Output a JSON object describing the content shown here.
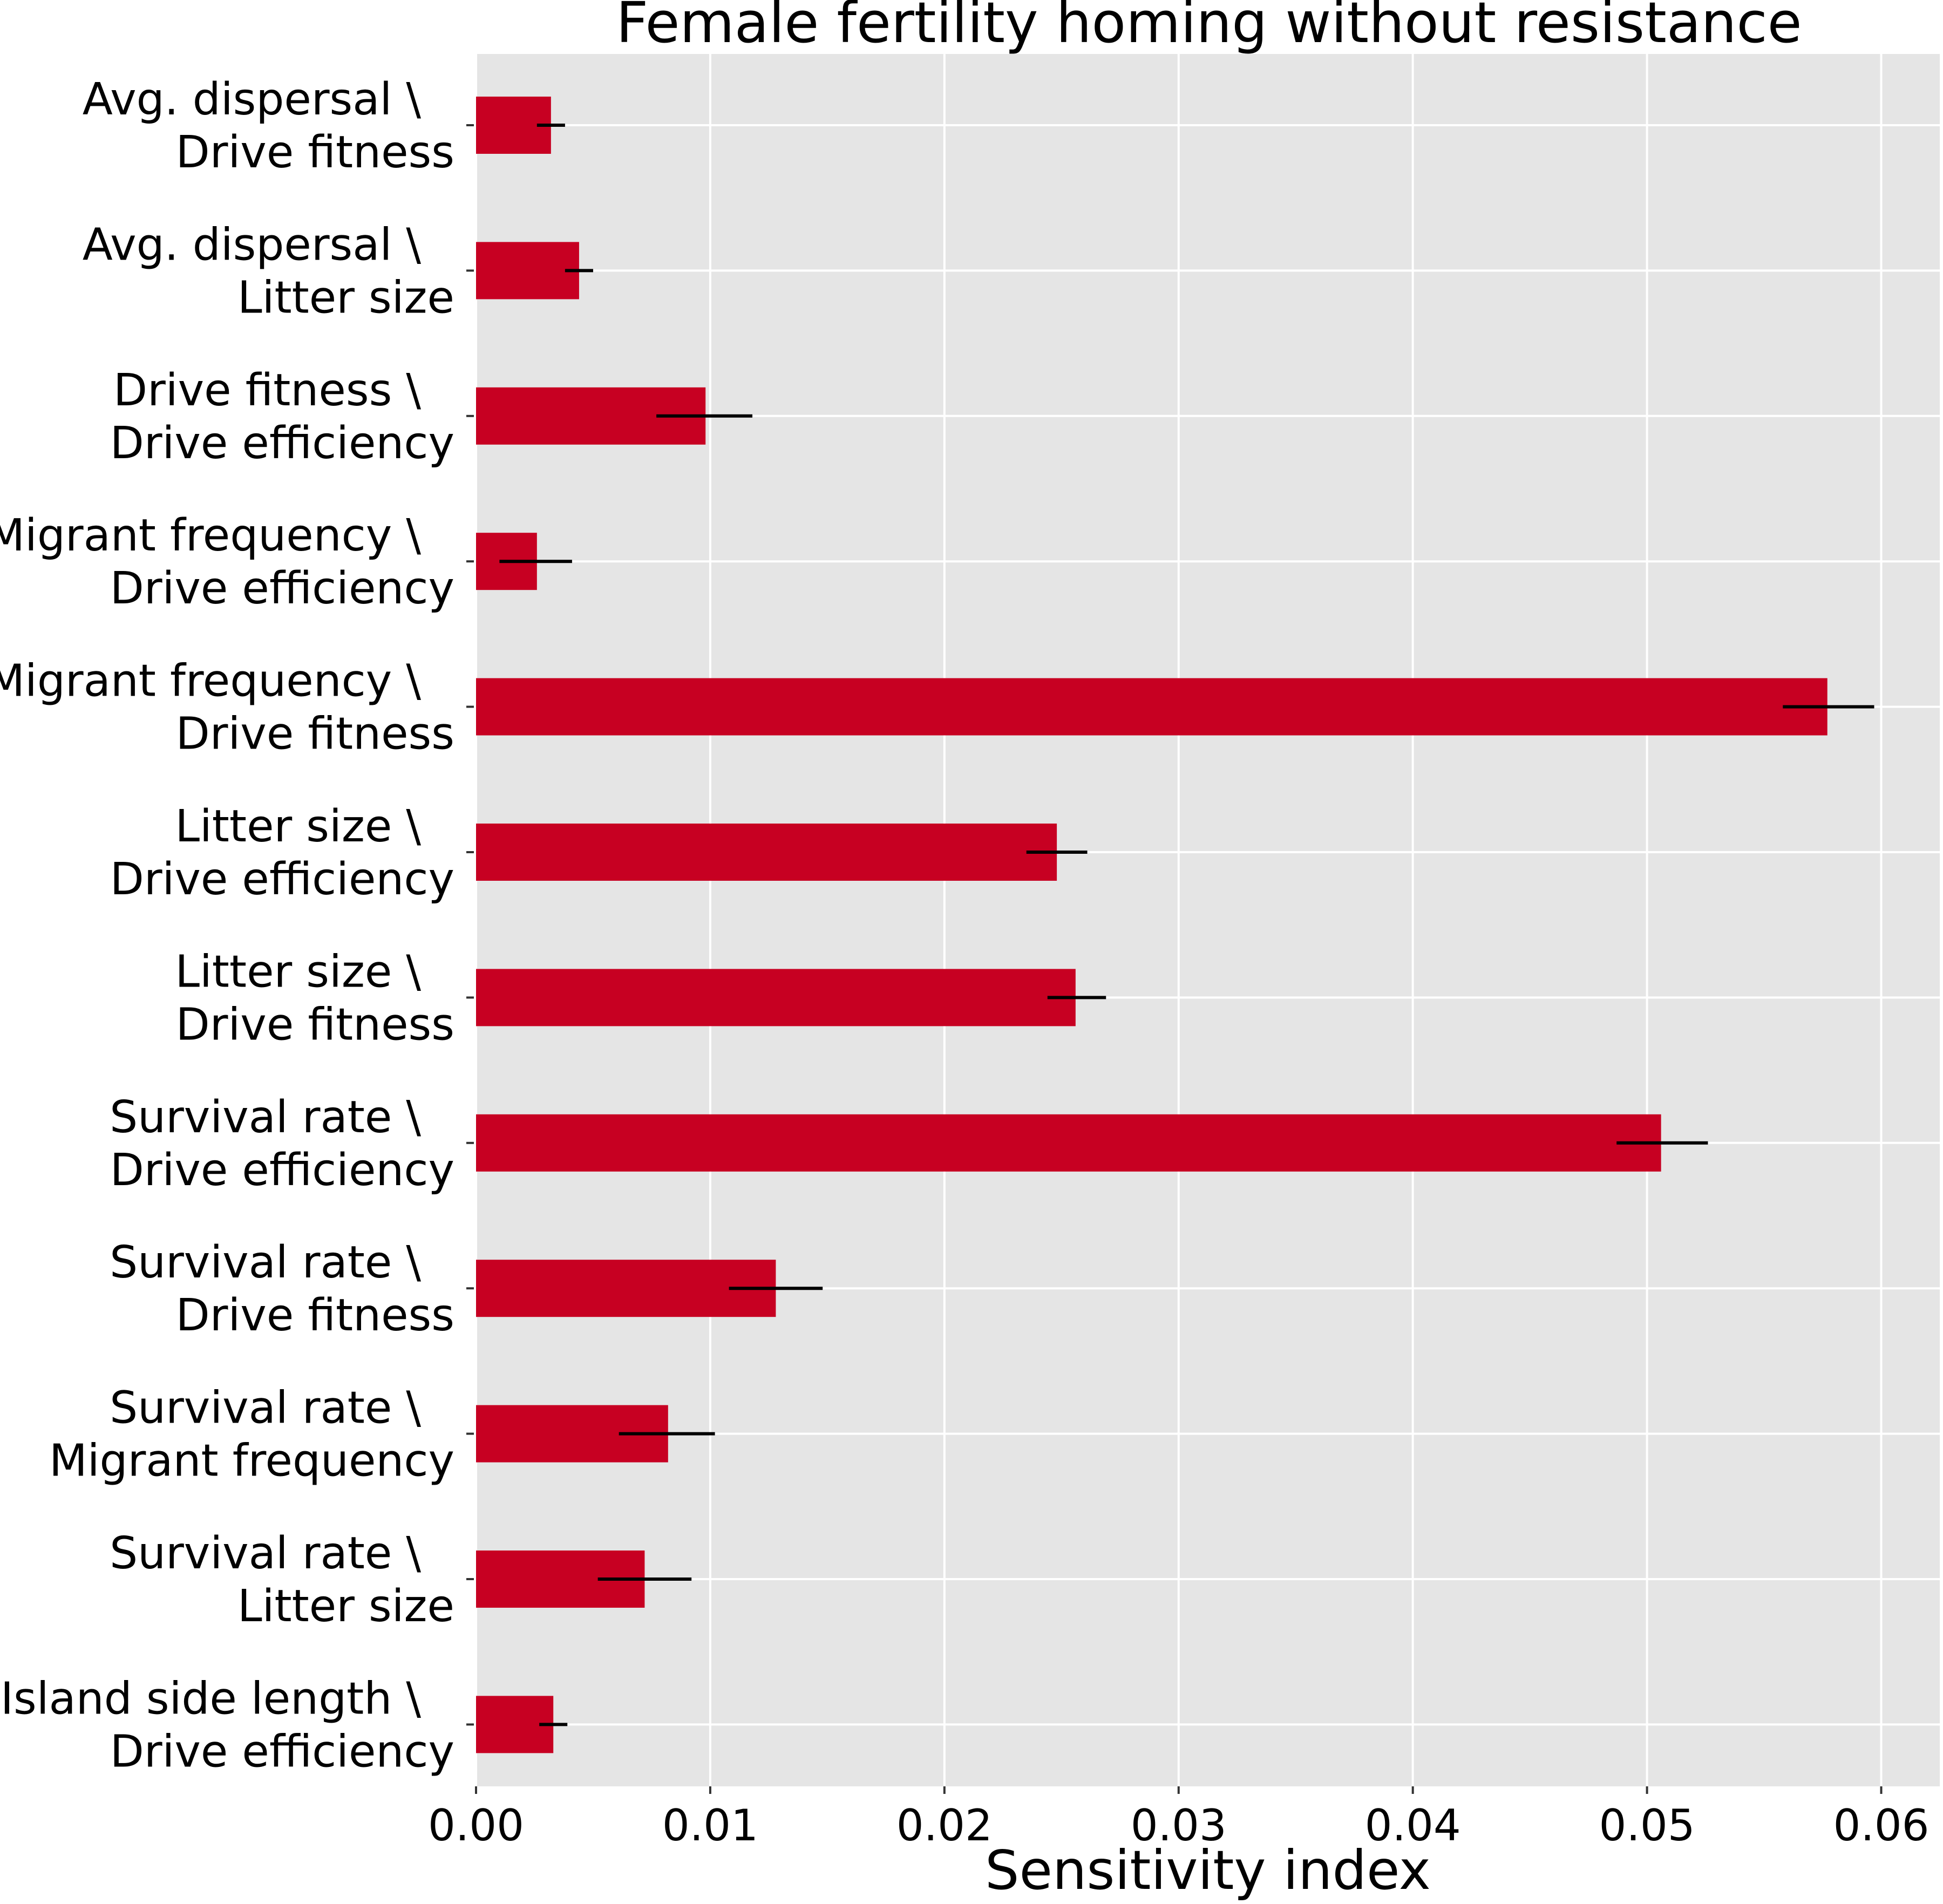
{
  "chart_data": {
    "type": "bar",
    "orientation": "horizontal",
    "title": "Female fertility homing without resistance",
    "xlabel": "Sensitivity index",
    "ylabel": "",
    "xlim": [
      0,
      0.0625
    ],
    "xticks": [
      0.0,
      0.01,
      0.02,
      0.03,
      0.04,
      0.05,
      0.06
    ],
    "xtick_labels": [
      "0.00",
      "0.01",
      "0.02",
      "0.03",
      "0.04",
      "0.05",
      "0.06"
    ],
    "grid": true,
    "bar_color": "#c70022",
    "error_bar_color": "#000000",
    "background_color": "#e5e5e5",
    "categories": [
      {
        "line1": "Avg. dispersal \\",
        "line2": "Drive fitness"
      },
      {
        "line1": "Avg. dispersal \\",
        "line2": "Litter size"
      },
      {
        "line1": "Drive fitness \\",
        "line2": "Drive efficiency"
      },
      {
        "line1": "Migrant frequency \\",
        "line2": "Drive efficiency"
      },
      {
        "line1": "Migrant frequency \\",
        "line2": "Drive fitness"
      },
      {
        "line1": "Litter size \\",
        "line2": "Drive efficiency"
      },
      {
        "line1": "Litter size \\",
        "line2": "Drive fitness"
      },
      {
        "line1": "Survival rate \\",
        "line2": "Drive efficiency"
      },
      {
        "line1": "Survival rate \\",
        "line2": "Drive fitness"
      },
      {
        "line1": "Survival rate \\",
        "line2": "Migrant frequency"
      },
      {
        "line1": "Survival rate \\",
        "line2": "Litter size"
      },
      {
        "line1": "Island side length \\",
        "line2": "Drive efficiency"
      }
    ],
    "values": [
      0.0032,
      0.0044,
      0.0098,
      0.0026,
      0.0577,
      0.0248,
      0.0256,
      0.0506,
      0.0128,
      0.0082,
      0.0072,
      0.0033
    ],
    "error_low": [
      0.0026,
      0.0038,
      0.0077,
      0.001,
      0.0558,
      0.0235,
      0.0244,
      0.0487,
      0.0108,
      0.0061,
      0.0052,
      0.0027
    ],
    "error_high": [
      0.0038,
      0.005,
      0.0118,
      0.0041,
      0.0597,
      0.0261,
      0.0269,
      0.0526,
      0.0148,
      0.0102,
      0.0092,
      0.0039
    ]
  }
}
